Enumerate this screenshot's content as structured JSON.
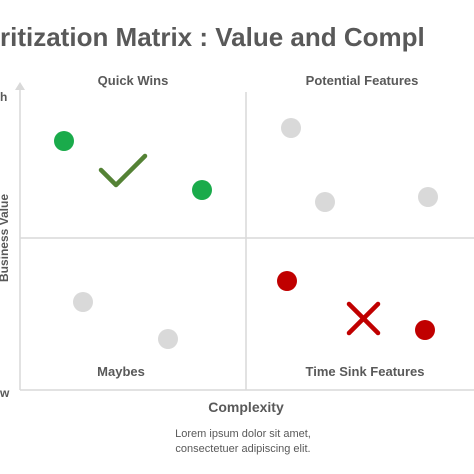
{
  "title": "ritization Matrix : Value and Compl",
  "axes": {
    "y_label": "Business Value",
    "y_high_tick": "h",
    "y_low_tick": "w",
    "x_label": "Complexity"
  },
  "quadrants": {
    "top_left": "Quick Wins",
    "top_right": "Potential Features",
    "bottom_left": "Maybes",
    "bottom_right": "Time Sink Features"
  },
  "note_lines": [
    "Lorem ipsum dolor sit amet,",
    "consectetuer adipiscing elit."
  ],
  "colors": {
    "green": "#1aab4b",
    "red": "#c00000",
    "gray": "#d9d9d9",
    "check": "#548235",
    "cross": "#c00000",
    "axis": "#d9d9d9",
    "text": "#595959"
  },
  "markers": {
    "check": "check-icon",
    "cross": "cross-icon"
  }
}
